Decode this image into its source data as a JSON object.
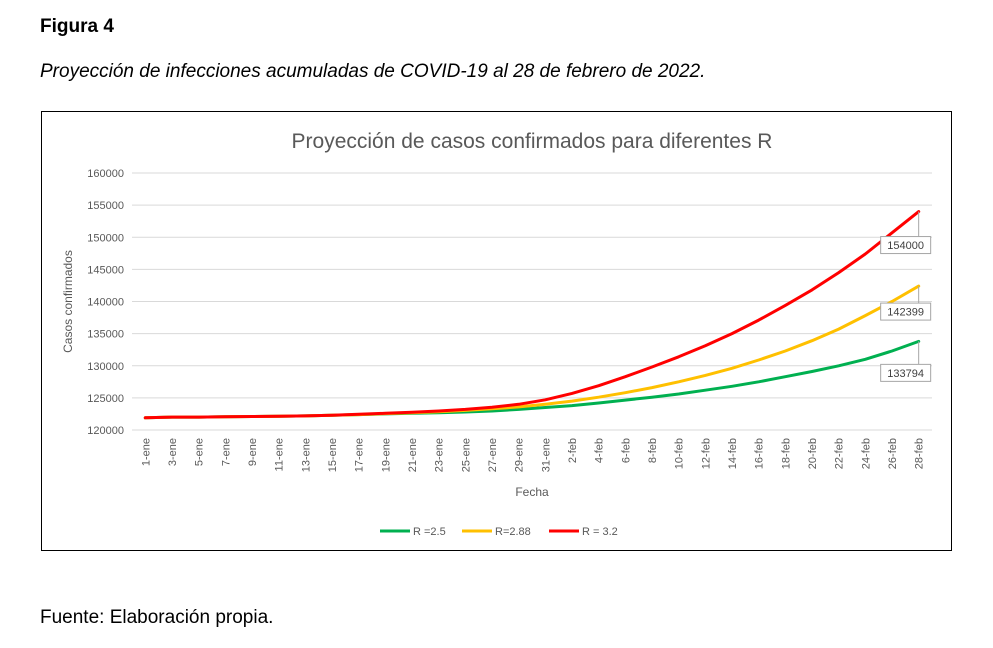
{
  "figure_label": "Figura 4",
  "figure_caption": "Proyección de infecciones acumuladas de COVID-19 al 28 de febrero de 2022.",
  "source_note": "Fuente: Elaboración propia.",
  "chart_data": {
    "type": "line",
    "title": "Proyección de casos confirmados para diferentes R",
    "xlabel": "Fecha",
    "ylabel": "Casos confirmados",
    "ylim": [
      120000,
      160000
    ],
    "yticks": [
      120000,
      125000,
      130000,
      135000,
      140000,
      145000,
      150000,
      155000,
      160000
    ],
    "grid": true,
    "legend_position": "bottom",
    "x": [
      "1-ene",
      "3-ene",
      "5-ene",
      "7-ene",
      "9-ene",
      "11-ene",
      "13-ene",
      "15-ene",
      "17-ene",
      "19-ene",
      "21-ene",
      "23-ene",
      "25-ene",
      "27-ene",
      "29-ene",
      "31-ene",
      "2-feb",
      "4-feb",
      "6-feb",
      "8-feb",
      "10-feb",
      "12-feb",
      "14-feb",
      "16-feb",
      "18-feb",
      "20-feb",
      "22-feb",
      "24-feb",
      "26-feb",
      "28-feb"
    ],
    "series": [
      {
        "name": "R =2.5",
        "color": "#00b050",
        "values": [
          121900,
          122000,
          122000,
          122050,
          122100,
          122150,
          122200,
          122300,
          122400,
          122500,
          122600,
          122700,
          122800,
          122950,
          123200,
          123500,
          123800,
          124200,
          124650,
          125100,
          125600,
          126200,
          126800,
          127500,
          128300,
          129100,
          130000,
          131000,
          132300,
          133794
        ],
        "end_label": "133794"
      },
      {
        "name": "R=2.88",
        "color": "#ffc000",
        "values": [
          121900,
          122000,
          122000,
          122050,
          122100,
          122150,
          122200,
          122300,
          122400,
          122550,
          122700,
          122850,
          123050,
          123300,
          123600,
          124000,
          124500,
          125100,
          125800,
          126600,
          127500,
          128500,
          129600,
          130900,
          132300,
          133900,
          135700,
          137800,
          140000,
          142399
        ],
        "end_label": "142399"
      },
      {
        "name": "R  = 3.2",
        "color": "#ff0000",
        "values": [
          121900,
          122000,
          122000,
          122050,
          122100,
          122150,
          122200,
          122300,
          122450,
          122600,
          122750,
          122950,
          123200,
          123550,
          124000,
          124700,
          125700,
          126900,
          128300,
          129800,
          131400,
          133100,
          135000,
          137100,
          139400,
          141800,
          144500,
          147400,
          150700,
          154000
        ],
        "end_label": "154000"
      }
    ]
  }
}
